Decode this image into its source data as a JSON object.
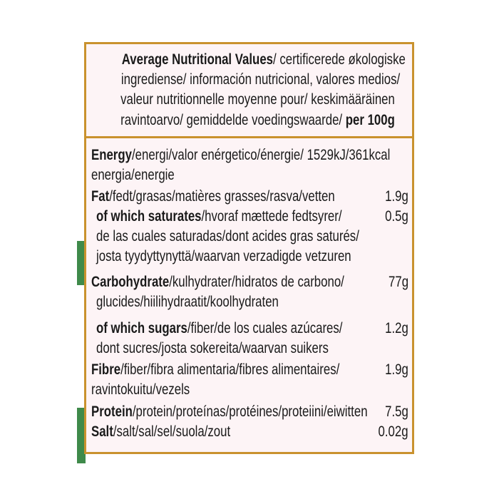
{
  "header": {
    "lines": [
      {
        "bold": "Average Nutritional Values",
        "text": "/ certificerede økologiske"
      },
      {
        "bold": "",
        "text": "ingrediense/ información nutricional, valores medios/"
      },
      {
        "bold": "",
        "text": "valeur nutritionnelle moyenne pour/ keskimääräinen"
      },
      {
        "bold": "",
        "text": "ravintoarvo/ gemiddelde voedingswaarde/ "
      }
    ],
    "per": "per 100g"
  },
  "rows": [
    {
      "bold": "Energy",
      "text": "/energi/valor enérgetico/énergie/ 1529kJ/361kcal",
      "value": ""
    },
    {
      "bold": "",
      "text": "energia/energie",
      "value": ""
    },
    {
      "bold": "Fat",
      "text": "/fedt/grasas/matières grasses/rasva/vetten",
      "value": "1.9g"
    },
    {
      "bold": "of which saturates",
      "text": "/hvoraf mættede fedtsyrer/",
      "value": "0.5g"
    },
    {
      "bold": "",
      "text": "de las  cuales saturadas/dont acides gras saturés/",
      "value": ""
    },
    {
      "bold": "",
      "text": "josta tyydyttynyttä/waarvan verzadigde vetzuren",
      "value": ""
    },
    {
      "bold": "Carbohydrate",
      "text": "/kulhydrater/hidratos de carbono/",
      "value": "77g"
    },
    {
      "bold": "",
      "text": "glucides/hiilihydraatit/koolhydraten",
      "value": ""
    },
    {
      "bold": "of which sugars",
      "text": "/fiber/de los cuales azúcares/",
      "value": "1.2g"
    },
    {
      "bold": "",
      "text": "dont sucres/josta sokereita/waarvan suikers",
      "value": ""
    },
    {
      "bold": "Fibre",
      "text": "/fiber/fibra alimentaria/fibres alimentaires/",
      "value": "1.9g"
    },
    {
      "bold": "",
      "text": "ravintokuitu/vezels",
      "value": ""
    },
    {
      "bold": "Protein",
      "text": "/protein/proteínas/protéines/proteiini/eiwitten",
      "value": "7.5g"
    },
    {
      "bold": "Salt",
      "text": "/salt/sal/sel/suola/zout",
      "value": "0.02g"
    }
  ]
}
